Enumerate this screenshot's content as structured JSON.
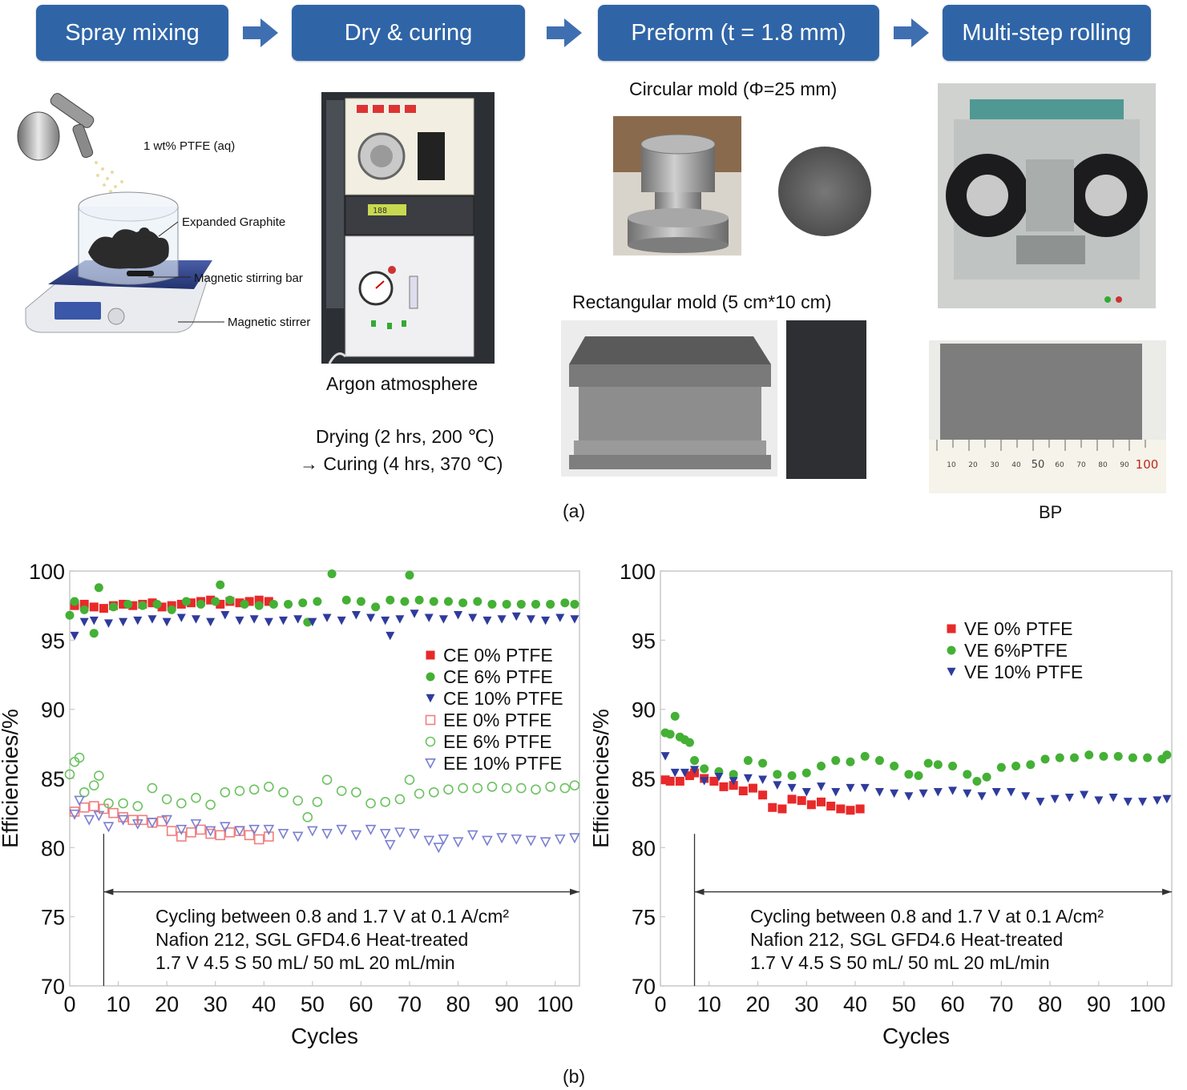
{
  "process": {
    "steps": [
      "Spray mixing",
      "Dry & curing",
      "Preform (t = 1.8 mm)",
      "Multi-step rolling"
    ],
    "spray": {
      "labels": [
        "1 wt% PTFE (aq)",
        "Expanded Graphite",
        "Magnetic stirring bar",
        "Magnetic stirrer"
      ]
    },
    "dry": {
      "caption": "Argon atmosphere",
      "drying": "Drying (2 hrs, 200 ℃)",
      "curing": "Curing (4 hrs, 370 ℃)",
      "arrow_glyph": "→",
      "display": "188"
    },
    "preform": {
      "circular_label": "Circular mold (Φ=25 mm)",
      "rectangular_label": "Rectangular mold (5 cm*10 cm)"
    },
    "rolling": {
      "caption": "BP",
      "ruler_labels": [
        "10",
        "20",
        "30",
        "40",
        "50",
        "60",
        "70",
        "80",
        "90",
        "100"
      ]
    },
    "panel_label": "(a)"
  },
  "panel_b_label": "(b)",
  "chart_data": [
    {
      "type": "scatter",
      "xlabel": "Cycles",
      "ylabel": "Efficiencies/%",
      "xlim": [
        0,
        105
      ],
      "ylim": [
        70,
        100
      ],
      "xticks": [
        0,
        10,
        20,
        30,
        40,
        50,
        60,
        70,
        80,
        90,
        100
      ],
      "yticks": [
        70,
        75,
        80,
        85,
        90,
        95,
        100
      ],
      "legend_position": "center-right",
      "annotation": [
        "Cycling between 0.8 and 1.7 V at 0.1 A/cm²",
        "Nafion 212, SGL GFD4.6 Heat-treated",
        "1.7 V 4.5 S 50 mL/ 50 mL 20 mL/min"
      ],
      "cycling_start_cycle": 7,
      "series": [
        {
          "name": "CE 0% PTFE",
          "marker": "square",
          "filled": true,
          "color": "#e8292a",
          "x": [
            1,
            3,
            5,
            7,
            9,
            11,
            13,
            15,
            17,
            19,
            21,
            23,
            25,
            27,
            29,
            31,
            33,
            35,
            37,
            39,
            41
          ],
          "values": [
            97.5,
            97.6,
            97.4,
            97.3,
            97.5,
            97.6,
            97.5,
            97.6,
            97.7,
            97.4,
            97.5,
            97.6,
            97.7,
            97.8,
            97.9,
            97.6,
            97.8,
            97.7,
            97.8,
            97.9,
            97.8
          ]
        },
        {
          "name": "CE 6% PTFE",
          "marker": "circle",
          "filled": true,
          "color": "#44b035",
          "x": [
            0,
            1,
            3,
            5,
            6,
            9,
            12,
            15,
            18,
            21,
            24,
            27,
            30,
            31,
            33,
            36,
            39,
            42,
            45,
            48,
            49,
            51,
            54,
            57,
            60,
            63,
            66,
            69,
            70,
            72,
            75,
            78,
            81,
            84,
            87,
            90,
            93,
            96,
            99,
            102,
            104
          ],
          "values": [
            96.8,
            97.8,
            97.2,
            95.5,
            98.8,
            97.4,
            97.6,
            97.5,
            97.6,
            97.2,
            97.8,
            97.6,
            97.8,
            99.0,
            97.9,
            97.6,
            97.5,
            97.6,
            97.6,
            97.7,
            96.3,
            97.8,
            99.8,
            97.9,
            97.8,
            97.4,
            97.9,
            97.8,
            99.7,
            97.9,
            97.8,
            97.8,
            97.7,
            97.8,
            97.6,
            97.6,
            97.6,
            97.6,
            97.6,
            97.7,
            97.6
          ]
        },
        {
          "name": "CE 10% PTFE",
          "marker": "triangle-down",
          "filled": true,
          "color": "#2f3b9c",
          "x": [
            1,
            3,
            5,
            8,
            11,
            14,
            17,
            20,
            23,
            26,
            29,
            32,
            35,
            38,
            41,
            44,
            47,
            50,
            53,
            56,
            59,
            62,
            65,
            66,
            68,
            71,
            74,
            77,
            80,
            83,
            86,
            89,
            92,
            95,
            98,
            101,
            104
          ],
          "values": [
            95.3,
            96.3,
            96.4,
            96.2,
            96.3,
            96.4,
            96.5,
            96.3,
            96.6,
            96.5,
            96.3,
            96.8,
            96.4,
            96.5,
            96.3,
            96.4,
            96.5,
            96.3,
            96.6,
            96.4,
            96.8,
            96.6,
            96.4,
            95.3,
            96.5,
            96.9,
            96.6,
            96.5,
            96.8,
            96.6,
            96.4,
            96.5,
            96.7,
            96.5,
            96.4,
            96.6,
            96.5
          ]
        },
        {
          "name": "EE 0% PTFE",
          "marker": "square",
          "filled": false,
          "color": "#f07f7f",
          "x": [
            1,
            3,
            5,
            7,
            9,
            11,
            13,
            15,
            17,
            19,
            21,
            23,
            25,
            27,
            29,
            31,
            33,
            35,
            37,
            39,
            41
          ],
          "values": [
            82.6,
            82.9,
            83.0,
            82.8,
            82.5,
            82.2,
            82.0,
            82.0,
            81.8,
            81.9,
            81.2,
            80.8,
            81.1,
            81.3,
            81.0,
            80.9,
            81.1,
            81.2,
            80.9,
            80.6,
            80.8
          ]
        },
        {
          "name": "EE 6% PTFE",
          "marker": "circle",
          "filled": false,
          "color": "#6cc261",
          "x": [
            0,
            1,
            2,
            3,
            5,
            6,
            8,
            11,
            14,
            17,
            20,
            23,
            26,
            29,
            32,
            35,
            38,
            41,
            44,
            47,
            49,
            51,
            53,
            56,
            59,
            62,
            65,
            68,
            70,
            72,
            75,
            78,
            81,
            84,
            87,
            90,
            93,
            96,
            99,
            102,
            104
          ],
          "values": [
            85.3,
            86.2,
            86.5,
            84.0,
            84.5,
            85.2,
            83.2,
            83.2,
            83.0,
            84.3,
            83.5,
            83.2,
            83.6,
            83.1,
            84.0,
            84.1,
            84.2,
            84.4,
            84.0,
            83.4,
            82.2,
            83.3,
            84.9,
            84.1,
            84.0,
            83.2,
            83.3,
            83.5,
            84.9,
            83.9,
            84.0,
            84.2,
            84.3,
            84.3,
            84.4,
            84.3,
            84.3,
            84.2,
            84.4,
            84.3,
            84.5
          ]
        },
        {
          "name": "EE 10% PTFE",
          "marker": "triangle-down",
          "filled": false,
          "color": "#7a7fd0",
          "x": [
            1,
            2,
            4,
            6,
            8,
            11,
            14,
            17,
            20,
            23,
            26,
            29,
            32,
            35,
            38,
            41,
            44,
            47,
            50,
            53,
            56,
            59,
            62,
            65,
            66,
            68,
            71,
            74,
            76,
            77,
            80,
            83,
            86,
            89,
            92,
            95,
            98,
            101,
            104
          ],
          "values": [
            82.4,
            83.4,
            82.0,
            82.3,
            81.5,
            82.0,
            81.7,
            81.8,
            82.0,
            81.3,
            81.7,
            81.2,
            81.5,
            81.2,
            81.3,
            81.3,
            81.0,
            80.8,
            81.2,
            81.0,
            81.3,
            80.9,
            81.3,
            81.0,
            80.2,
            81.1,
            81.0,
            80.5,
            80.0,
            80.6,
            80.4,
            80.9,
            80.5,
            80.7,
            80.6,
            80.5,
            80.4,
            80.6,
            80.7
          ]
        }
      ]
    },
    {
      "type": "scatter",
      "xlabel": "Cycles",
      "ylabel": "Efficiencies/%",
      "xlim": [
        0,
        105
      ],
      "ylim": [
        70,
        100
      ],
      "xticks": [
        0,
        10,
        20,
        30,
        40,
        50,
        60,
        70,
        80,
        90,
        100
      ],
      "yticks": [
        70,
        75,
        80,
        85,
        90,
        95,
        100
      ],
      "legend_position": "top-right",
      "annotation": [
        "Cycling between 0.8 and 1.7 V at 0.1 A/cm²",
        "Nafion 212, SGL GFD4.6 Heat-treated",
        "1.7 V 4.5 S 50 mL/ 50 mL 20 mL/min"
      ],
      "cycling_start_cycle": 7,
      "series": [
        {
          "name": "VE 0% PTFE",
          "marker": "square",
          "filled": true,
          "color": "#e8292a",
          "x": [
            1,
            2,
            4,
            6,
            7,
            9,
            11,
            13,
            15,
            17,
            19,
            21,
            23,
            25,
            27,
            29,
            31,
            33,
            35,
            37,
            39,
            41
          ],
          "values": [
            84.9,
            84.8,
            84.8,
            85.2,
            85.4,
            85.0,
            84.8,
            84.4,
            84.5,
            84.1,
            84.3,
            83.8,
            82.9,
            82.8,
            83.5,
            83.4,
            83.1,
            83.3,
            83.0,
            82.8,
            82.7,
            82.8
          ]
        },
        {
          "name": "VE 6%PTFE",
          "marker": "circle",
          "filled": true,
          "color": "#44b035",
          "x": [
            1,
            2,
            3,
            4,
            5,
            6,
            7,
            9,
            12,
            15,
            18,
            21,
            24,
            27,
            30,
            33,
            36,
            39,
            42,
            45,
            48,
            51,
            53,
            55,
            57,
            60,
            63,
            65,
            67,
            70,
            73,
            76,
            79,
            82,
            85,
            88,
            91,
            94,
            97,
            100,
            103,
            104
          ],
          "values": [
            88.3,
            88.2,
            89.5,
            88.0,
            87.8,
            87.6,
            86.3,
            85.7,
            85.5,
            85.3,
            86.3,
            86.1,
            85.3,
            85.2,
            85.4,
            85.9,
            86.3,
            86.2,
            86.6,
            86.3,
            85.9,
            85.3,
            85.2,
            86.1,
            86.0,
            85.9,
            85.3,
            84.8,
            85.1,
            85.8,
            85.9,
            86.0,
            86.4,
            86.5,
            86.5,
            86.7,
            86.6,
            86.6,
            86.5,
            86.5,
            86.4,
            86.7
          ]
        },
        {
          "name": "VE 10% PTFE",
          "marker": "triangle-down",
          "filled": true,
          "color": "#2f3b9c",
          "x": [
            1,
            3,
            5,
            7,
            9,
            12,
            15,
            18,
            21,
            24,
            27,
            30,
            33,
            36,
            39,
            42,
            45,
            48,
            51,
            54,
            57,
            60,
            63,
            66,
            69,
            72,
            75,
            78,
            81,
            84,
            87,
            90,
            93,
            96,
            99,
            102,
            104
          ],
          "values": [
            86.6,
            85.4,
            85.4,
            85.6,
            84.8,
            85.1,
            84.8,
            85.0,
            84.9,
            84.5,
            84.3,
            84.0,
            84.4,
            84.0,
            84.3,
            84.3,
            84.0,
            83.9,
            83.7,
            83.9,
            84.0,
            84.1,
            83.9,
            83.7,
            84.0,
            84.0,
            83.7,
            83.3,
            83.5,
            83.6,
            83.8,
            83.4,
            83.6,
            83.3,
            83.3,
            83.4,
            83.5
          ]
        }
      ]
    }
  ]
}
